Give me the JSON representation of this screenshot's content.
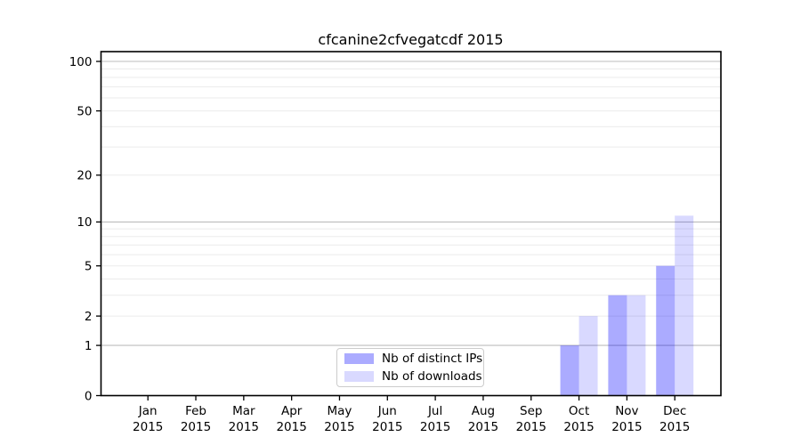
{
  "title": "cfcanine2cfvegatcdf 2015",
  "chart_data": {
    "type": "bar",
    "title": "cfcanine2cfvegatcdf 2015",
    "categories": [
      "Jan 2015",
      "Feb 2015",
      "Mar 2015",
      "Apr 2015",
      "May 2015",
      "Jun 2015",
      "Jul 2015",
      "Aug 2015",
      "Sep 2015",
      "Oct 2015",
      "Nov 2015",
      "Dec 2015"
    ],
    "series": [
      {
        "name": "Nb of distinct IPs",
        "values": [
          null,
          null,
          null,
          null,
          null,
          null,
          null,
          null,
          null,
          1,
          3,
          5
        ],
        "color": "rgba(0,0,255,0.33)",
        "swatch_hex": "#a9a9fa"
      },
      {
        "name": "Nb of downloads",
        "values": [
          null,
          null,
          null,
          null,
          null,
          null,
          null,
          null,
          null,
          2,
          3,
          11
        ],
        "color": "rgba(0,0,255,0.15)",
        "swatch_hex": "#dcdcfb"
      }
    ],
    "xlabel": "",
    "ylabel": "",
    "yscale": "log1p",
    "ylim": [
      0,
      115
    ],
    "y_ticks": [
      0,
      1,
      2,
      5,
      10,
      20,
      50,
      100
    ],
    "y_major_gridlines": [
      1,
      10,
      100
    ],
    "y_minor_gridlines": [
      2,
      3,
      4,
      5,
      6,
      7,
      8,
      9,
      20,
      30,
      40,
      50,
      60,
      70,
      80,
      90
    ],
    "grid": "horizontal",
    "legend_position": "lower center"
  },
  "legend": {
    "items": [
      {
        "label": "Nb of distinct IPs",
        "swatch": "rgba(0,0,255,0.33)"
      },
      {
        "label": "Nb of downloads",
        "swatch": "rgba(0,0,255,0.15)"
      }
    ]
  },
  "colors": {
    "background": "#ffffff",
    "spine": "#000000",
    "major_gridline": "#bdbdbd",
    "minor_gridline": "#ebebeb",
    "tick_label": "#000000",
    "bar_ips": "#a9a9fa",
    "bar_downloads": "#dcdcfb"
  }
}
